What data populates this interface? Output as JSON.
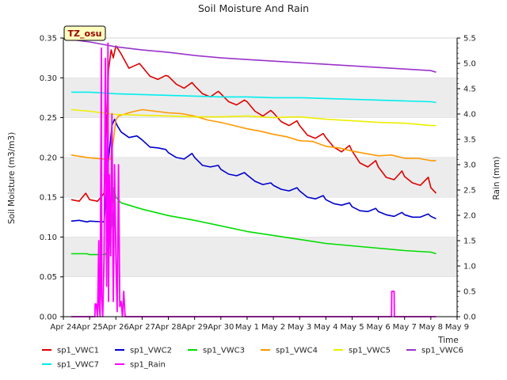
{
  "chart_data": {
    "type": "line",
    "title": "Soil Moisture And Rain",
    "station_label": "TZ_osu",
    "xlabel": "Time",
    "ylabel": "Soil Moisture (m3/m3)",
    "y2label": "Rain (mm)",
    "xlim": [
      0,
      15
    ],
    "ylim": [
      0,
      0.35
    ],
    "y2lim": [
      0,
      5.5
    ],
    "x_ticks": [
      {
        "value": 0,
        "label": "Apr 24"
      },
      {
        "value": 1,
        "label": "Apr 25"
      },
      {
        "value": 2,
        "label": "Apr 26"
      },
      {
        "value": 3,
        "label": "Apr 27"
      },
      {
        "value": 4,
        "label": "Apr 28"
      },
      {
        "value": 5,
        "label": "Apr 29"
      },
      {
        "value": 6,
        "label": "Apr 30"
      },
      {
        "value": 7,
        "label": "May 1"
      },
      {
        "value": 8,
        "label": "May 2"
      },
      {
        "value": 9,
        "label": "May 3"
      },
      {
        "value": 10,
        "label": "May 4"
      },
      {
        "value": 11,
        "label": "May 5"
      },
      {
        "value": 12,
        "label": "May 6"
      },
      {
        "value": 13,
        "label": "May 7"
      },
      {
        "value": 14,
        "label": "May 8"
      },
      {
        "value": 15,
        "label": "May 9"
      }
    ],
    "y_ticks": [
      "0.00",
      "0.05",
      "0.10",
      "0.15",
      "0.20",
      "0.25",
      "0.30",
      "0.35"
    ],
    "y2_ticks": [
      "0.0",
      "0.5",
      "1.0",
      "1.5",
      "2.0",
      "2.5",
      "3.0",
      "3.5",
      "4.0",
      "4.5",
      "5.0",
      "5.5"
    ],
    "grid": "horizontal bands",
    "legend_position": "bottom",
    "series": [
      {
        "name": "sp1_VWC1",
        "color": "#dd0000",
        "axis": "left",
        "x": [
          0.3,
          0.6,
          0.85,
          1.0,
          1.3,
          1.55,
          1.72,
          1.82,
          1.9,
          2.0,
          2.05,
          2.2,
          2.5,
          2.9,
          3.0,
          3.3,
          3.6,
          3.9,
          4.0,
          4.3,
          4.6,
          4.9,
          5.0,
          5.3,
          5.6,
          5.9,
          6.0,
          6.3,
          6.6,
          6.9,
          7.0,
          7.3,
          7.6,
          7.9,
          8.0,
          8.3,
          8.6,
          8.9,
          9.0,
          9.3,
          9.6,
          9.9,
          10.0,
          10.3,
          10.6,
          10.9,
          11.0,
          11.3,
          11.6,
          11.9,
          12.0,
          12.3,
          12.6,
          12.9,
          13.0,
          13.3,
          13.6,
          13.9,
          14.0,
          14.2
        ],
        "y": [
          0.147,
          0.145,
          0.155,
          0.147,
          0.145,
          0.155,
          0.31,
          0.335,
          0.325,
          0.34,
          0.338,
          0.33,
          0.312,
          0.318,
          0.314,
          0.302,
          0.298,
          0.303,
          0.302,
          0.292,
          0.287,
          0.294,
          0.29,
          0.28,
          0.276,
          0.283,
          0.28,
          0.27,
          0.266,
          0.272,
          0.27,
          0.258,
          0.252,
          0.259,
          0.256,
          0.245,
          0.24,
          0.246,
          0.24,
          0.228,
          0.224,
          0.23,
          0.225,
          0.213,
          0.207,
          0.215,
          0.208,
          0.193,
          0.188,
          0.196,
          0.188,
          0.175,
          0.172,
          0.183,
          0.176,
          0.168,
          0.165,
          0.175,
          0.162,
          0.155
        ]
      },
      {
        "name": "sp1_VWC2",
        "color": "#0000cc",
        "axis": "left",
        "x": [
          0.3,
          0.6,
          0.9,
          1.0,
          1.55,
          1.7,
          1.85,
          1.95,
          2.05,
          2.2,
          2.5,
          2.8,
          3.0,
          3.3,
          3.6,
          3.9,
          4.0,
          4.3,
          4.6,
          4.9,
          5.0,
          5.3,
          5.6,
          5.9,
          6.0,
          6.3,
          6.6,
          6.9,
          7.0,
          7.3,
          7.6,
          7.9,
          8.0,
          8.3,
          8.6,
          8.9,
          9.0,
          9.3,
          9.6,
          9.9,
          10.0,
          10.3,
          10.6,
          10.9,
          11.0,
          11.3,
          11.6,
          11.9,
          12.0,
          12.3,
          12.6,
          12.9,
          13.0,
          13.3,
          13.6,
          13.9,
          14.0,
          14.2
        ],
        "y": [
          0.12,
          0.121,
          0.119,
          0.12,
          0.119,
          0.19,
          0.24,
          0.248,
          0.24,
          0.232,
          0.225,
          0.227,
          0.222,
          0.213,
          0.212,
          0.21,
          0.206,
          0.2,
          0.198,
          0.205,
          0.2,
          0.19,
          0.188,
          0.19,
          0.185,
          0.179,
          0.177,
          0.181,
          0.178,
          0.17,
          0.166,
          0.168,
          0.165,
          0.16,
          0.158,
          0.162,
          0.158,
          0.15,
          0.148,
          0.152,
          0.147,
          0.142,
          0.14,
          0.143,
          0.138,
          0.133,
          0.132,
          0.136,
          0.132,
          0.128,
          0.126,
          0.131,
          0.128,
          0.125,
          0.125,
          0.129,
          0.126,
          0.123
        ]
      },
      {
        "name": "sp1_VWC3",
        "color": "#00dd00",
        "axis": "left",
        "x": [
          0.3,
          0.9,
          1.0,
          1.6,
          1.75,
          1.85,
          1.92,
          2.0,
          2.2,
          3.0,
          4.0,
          5.0,
          6.0,
          7.0,
          8.0,
          9.0,
          10.0,
          11.0,
          12.0,
          13.0,
          14.0,
          14.2
        ],
        "y": [
          0.079,
          0.079,
          0.078,
          0.078,
          0.09,
          0.12,
          0.162,
          0.15,
          0.143,
          0.135,
          0.127,
          0.121,
          0.114,
          0.107,
          0.102,
          0.097,
          0.092,
          0.089,
          0.086,
          0.083,
          0.081,
          0.079
        ]
      },
      {
        "name": "sp1_VWC4",
        "color": "#ff9900",
        "axis": "left",
        "x": [
          0.3,
          0.9,
          1.5,
          1.8,
          1.9,
          2.0,
          2.1,
          2.3,
          2.6,
          3.0,
          3.5,
          4.0,
          4.5,
          5.0,
          5.5,
          6.0,
          6.5,
          7.0,
          7.5,
          8.0,
          8.5,
          9.0,
          9.5,
          10.0,
          10.5,
          11.0,
          11.5,
          12.0,
          12.5,
          13.0,
          13.5,
          14.0,
          14.2
        ],
        "y": [
          0.203,
          0.2,
          0.198,
          0.198,
          0.22,
          0.247,
          0.252,
          0.254,
          0.257,
          0.26,
          0.258,
          0.256,
          0.255,
          0.252,
          0.247,
          0.244,
          0.24,
          0.236,
          0.233,
          0.229,
          0.226,
          0.221,
          0.22,
          0.214,
          0.212,
          0.208,
          0.205,
          0.202,
          0.203,
          0.199,
          0.199,
          0.196,
          0.196
        ]
      },
      {
        "name": "sp1_VWC5",
        "color": "#eeee00",
        "axis": "left",
        "x": [
          0.3,
          1.0,
          2.0,
          3.0,
          4.0,
          5.0,
          6.0,
          7.0,
          8.0,
          9.0,
          10.0,
          11.0,
          12.0,
          13.0,
          14.0,
          14.2
        ],
        "y": [
          0.26,
          0.258,
          0.254,
          0.253,
          0.252,
          0.251,
          0.251,
          0.252,
          0.25,
          0.251,
          0.248,
          0.246,
          0.244,
          0.243,
          0.24,
          0.24
        ]
      },
      {
        "name": "sp1_VWC6",
        "color": "#9933cc",
        "axis": "left",
        "x": [
          0.3,
          1.0,
          2.0,
          3.0,
          4.0,
          5.0,
          6.0,
          7.0,
          8.0,
          9.0,
          10.0,
          11.0,
          12.0,
          13.0,
          14.0,
          14.2
        ],
        "y": [
          0.348,
          0.345,
          0.339,
          0.335,
          0.332,
          0.328,
          0.325,
          0.323,
          0.321,
          0.319,
          0.317,
          0.315,
          0.313,
          0.311,
          0.309,
          0.307
        ]
      },
      {
        "name": "sp1_VWC7",
        "color": "#00eeee",
        "axis": "left",
        "x": [
          0.3,
          1.0,
          2.0,
          3.0,
          4.0,
          5.0,
          6.0,
          7.0,
          8.0,
          9.0,
          10.0,
          11.0,
          12.0,
          13.0,
          14.0,
          14.2
        ],
        "y": [
          0.282,
          0.282,
          0.28,
          0.279,
          0.278,
          0.277,
          0.276,
          0.276,
          0.275,
          0.275,
          0.274,
          0.273,
          0.272,
          0.271,
          0.27,
          0.269
        ]
      },
      {
        "name": "sp1_Rain",
        "color": "#ff00ff",
        "axis": "right",
        "x": [
          0.3,
          1.2,
          1.21,
          1.25,
          1.3,
          1.35,
          1.36,
          1.4,
          1.45,
          1.46,
          1.5,
          1.55,
          1.6,
          1.65,
          1.7,
          1.72,
          1.75,
          1.8,
          1.85,
          1.9,
          1.95,
          2.0,
          2.05,
          2.1,
          2.15,
          2.2,
          2.25,
          2.3,
          2.35,
          2.5,
          12.5,
          12.51,
          12.6,
          12.61,
          14.2
        ],
        "y": [
          0.0,
          0.0,
          0.25,
          0.25,
          0.0,
          1.5,
          0.25,
          0.0,
          5.3,
          0.4,
          0.0,
          1.2,
          5.1,
          0.6,
          5.4,
          0.3,
          2.8,
          1.2,
          4.0,
          0.3,
          3.0,
          1.2,
          0.1,
          3.0,
          0.2,
          0.3,
          0.0,
          0.5,
          0.0,
          0.0,
          0.0,
          0.5,
          0.5,
          0.0,
          0.0
        ]
      }
    ]
  }
}
